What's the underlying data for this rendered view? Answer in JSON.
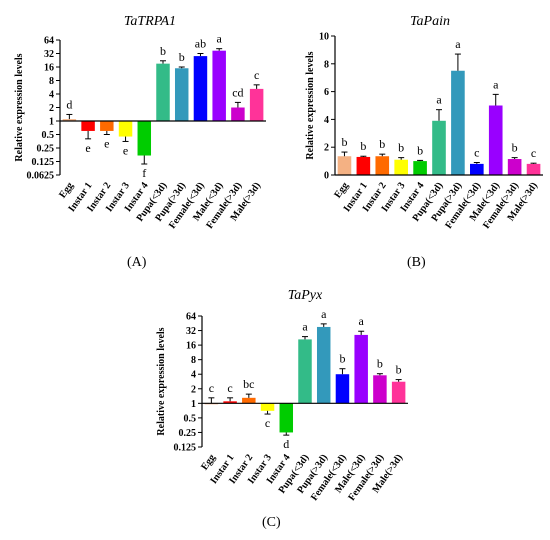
{
  "panel_labels": [
    "(A)",
    "(B)",
    "(C)"
  ],
  "chart_data": [
    {
      "type": "bar",
      "title": "TaTRPA1",
      "ylabel": "Relative expression levels",
      "y_scale": "log2",
      "ylim": [
        0.0625,
        64
      ],
      "yticks": [
        "0.0625",
        "0.125",
        "0.25",
        "0.5",
        "1",
        "2",
        "4",
        "8",
        "16",
        "32",
        "64"
      ],
      "categories": [
        "Egg",
        "Instar 1",
        "Instar 2",
        "Instar 3",
        "Instar 4",
        "Pupa(<3d)",
        "Pupa(>3d)",
        "Female(<3d)",
        "Male(<3d)",
        "Female(>3d)",
        "Male(>3d)"
      ],
      "values": [
        1.1,
        0.6,
        0.6,
        0.45,
        0.17,
        19,
        15,
        28,
        37,
        2.0,
        5.2
      ],
      "errors": [
        0.3,
        0.2,
        0.1,
        0.1,
        0.06,
        3,
        1,
        4,
        4,
        0.6,
        1.2
      ],
      "significance": [
        "d",
        "e",
        "e",
        "e",
        "f",
        "b",
        "b",
        "ab",
        "a",
        "cd",
        "c"
      ],
      "colors": [
        "#f4b183",
        "#ff0000",
        "#ff6a00",
        "#ffff00",
        "#00cc00",
        "#33bb88",
        "#3399bb",
        "#0000ff",
        "#9900ff",
        "#cc00cc",
        "#ff3399"
      ]
    },
    {
      "type": "bar",
      "title": "TaPain",
      "ylabel": "Relative expression levels",
      "y_scale": "linear",
      "ylim": [
        0,
        10
      ],
      "yticks": [
        "0",
        "2",
        "4",
        "6",
        "8",
        "10"
      ],
      "categories": [
        "Egg",
        "Instar 1",
        "Instar 2",
        "Instar 3",
        "Instar 4",
        "Pupa(<3d)",
        "Pupa(>3d)",
        "Female(<3d)",
        "Male(<3d)",
        "Female(>3d)",
        "Male(>3d)"
      ],
      "values": [
        1.35,
        1.3,
        1.35,
        1.1,
        1.0,
        3.9,
        7.5,
        0.8,
        5.0,
        1.15,
        0.8
      ],
      "errors": [
        0.3,
        0.05,
        0.15,
        0.15,
        0.05,
        0.8,
        1.2,
        0.1,
        0.8,
        0.1,
        0.05
      ],
      "significance": [
        "b",
        "b",
        "b",
        "b",
        "b",
        "a",
        "a",
        "c",
        "a",
        "b",
        "c"
      ],
      "colors": [
        "#f4b183",
        "#ff0000",
        "#ff6a00",
        "#ffff00",
        "#00cc00",
        "#33bb88",
        "#3399bb",
        "#0000ff",
        "#9900ff",
        "#cc00cc",
        "#ff3399"
      ]
    },
    {
      "type": "bar",
      "title": "TaPyx",
      "ylabel": "Relative expression levels",
      "y_scale": "log2",
      "ylim": [
        0.125,
        64
      ],
      "yticks": [
        "0.125",
        "0.25",
        "0.5",
        "1",
        "2",
        "4",
        "8",
        "16",
        "32",
        "64"
      ],
      "categories": [
        "Egg",
        "Instar 1",
        "Instar 2",
        "Instar 3",
        "Instar 4",
        "Pupa(<3d)",
        "Pupa(>3d)",
        "Female(<3d)",
        "Male(<3d)",
        "Female(>3d)",
        "Male(>3d)"
      ],
      "values": [
        1.0,
        1.1,
        1.3,
        0.7,
        0.25,
        21,
        38,
        4.0,
        26,
        3.8,
        2.8
      ],
      "errors": [
        0.3,
        0.2,
        0.25,
        0.1,
        0.03,
        3,
        6,
        1.2,
        5,
        0.3,
        0.3
      ],
      "significance": [
        "c",
        "c",
        "bc",
        "c",
        "d",
        "a",
        "a",
        "b",
        "a",
        "b",
        "b"
      ],
      "colors": [
        "#f4b183",
        "#ff0000",
        "#ff6a00",
        "#ffff00",
        "#00cc00",
        "#33bb88",
        "#3399bb",
        "#0000ff",
        "#9900ff",
        "#cc00cc",
        "#ff3399"
      ]
    }
  ]
}
